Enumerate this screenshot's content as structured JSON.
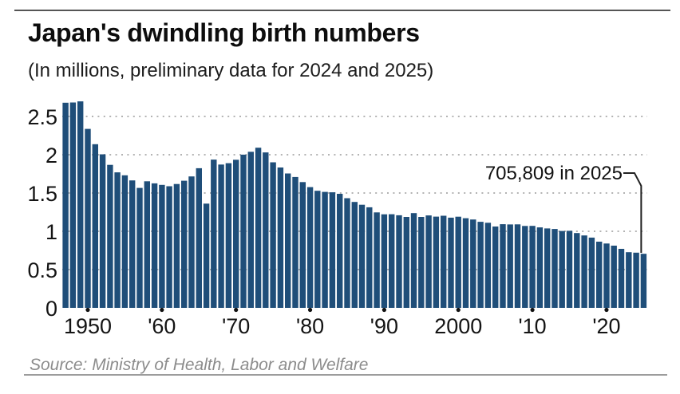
{
  "header": {
    "title": "Japan's dwindling birth numbers",
    "subtitle": "(In millions, preliminary data for 2024 and 2025)"
  },
  "chart_data": {
    "type": "bar",
    "title": "Japan's dwindling birth numbers",
    "subtitle": "(In millions, preliminary data for 2024 and 2025)",
    "unit": "millions of births per year",
    "grid": "dotted horizontal gridlines",
    "legend": "none",
    "ylim": [
      0,
      2.75
    ],
    "x": [
      1947,
      1948,
      1949,
      1950,
      1951,
      1952,
      1953,
      1954,
      1955,
      1956,
      1957,
      1958,
      1959,
      1960,
      1961,
      1962,
      1963,
      1964,
      1965,
      1966,
      1967,
      1968,
      1969,
      1970,
      1971,
      1972,
      1973,
      1974,
      1975,
      1976,
      1977,
      1978,
      1979,
      1980,
      1981,
      1982,
      1983,
      1984,
      1985,
      1986,
      1987,
      1988,
      1989,
      1990,
      1991,
      1992,
      1993,
      1994,
      1995,
      1996,
      1997,
      1998,
      1999,
      2000,
      2001,
      2002,
      2003,
      2004,
      2005,
      2006,
      2007,
      2008,
      2009,
      2010,
      2011,
      2012,
      2013,
      2014,
      2015,
      2016,
      2017,
      2018,
      2019,
      2020,
      2021,
      2022,
      2023,
      2024,
      2025
    ],
    "values": [
      2.679,
      2.682,
      2.697,
      2.338,
      2.138,
      2.005,
      1.868,
      1.77,
      1.731,
      1.665,
      1.567,
      1.653,
      1.626,
      1.606,
      1.589,
      1.618,
      1.66,
      1.717,
      1.824,
      1.361,
      1.936,
      1.872,
      1.89,
      1.934,
      2.001,
      2.039,
      2.092,
      2.03,
      1.901,
      1.833,
      1.755,
      1.709,
      1.643,
      1.577,
      1.529,
      1.515,
      1.509,
      1.49,
      1.432,
      1.383,
      1.347,
      1.314,
      1.247,
      1.222,
      1.223,
      1.209,
      1.188,
      1.238,
      1.187,
      1.207,
      1.192,
      1.203,
      1.178,
      1.191,
      1.171,
      1.154,
      1.124,
      1.111,
      1.063,
      1.093,
      1.09,
      1.091,
      1.07,
      1.071,
      1.051,
      1.037,
      1.03,
      1.004,
      1.006,
      0.977,
      0.946,
      0.918,
      0.865,
      0.841,
      0.812,
      0.771,
      0.727,
      0.721,
      0.706
    ],
    "y_ticks": [
      {
        "value": 0,
        "label": "0"
      },
      {
        "value": 0.5,
        "label": "0.5"
      },
      {
        "value": 1,
        "label": "1"
      },
      {
        "value": 1.5,
        "label": "1.5"
      },
      {
        "value": 2,
        "label": "2"
      },
      {
        "value": 2.5,
        "label": "2.5"
      }
    ],
    "x_ticks": [
      {
        "year": 1950,
        "label": "1950"
      },
      {
        "year": 1960,
        "label": "'60"
      },
      {
        "year": 1970,
        "label": "'70"
      },
      {
        "year": 1980,
        "label": "'80"
      },
      {
        "year": 1990,
        "label": "'90"
      },
      {
        "year": 2000,
        "label": "2000"
      },
      {
        "year": 2010,
        "label": "'10"
      },
      {
        "year": 2020,
        "label": "'20"
      }
    ],
    "annotation": {
      "text": "705,809 in 2025",
      "year": 2025,
      "births": 705809
    }
  },
  "colors": {
    "bar": "#1f4e79",
    "grid": "#b3b3b3",
    "tick_dot": "#111111",
    "leader_line": "#222222",
    "text": "#111111",
    "source_text": "#8c8c8c",
    "top_rule": "#555555",
    "bottom_rule": "#9c9c9c"
  },
  "footer": {
    "source": "Source: Ministry of Health, Labor and Welfare"
  }
}
